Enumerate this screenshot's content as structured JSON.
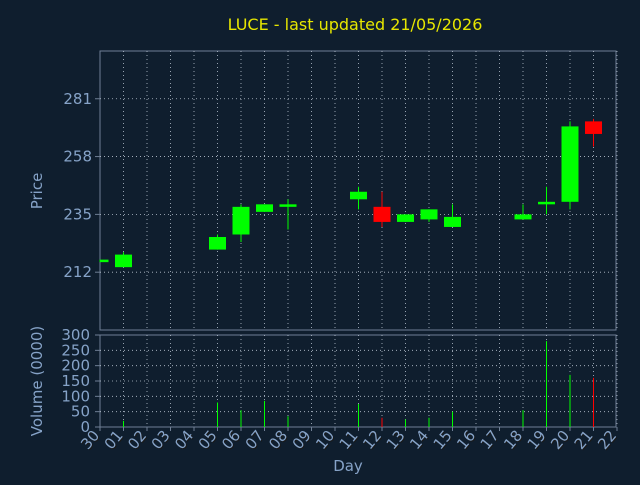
{
  "chart_data": [
    {
      "type": "candlestick",
      "title": "LUCE - last updated 21/05/2026",
      "ylabel": "Price",
      "ylim": [
        189,
        300
      ],
      "y_ticks": [
        212,
        235,
        258,
        281
      ],
      "grid": true,
      "x_categories": [
        "30",
        "01",
        "02",
        "03",
        "04",
        "05",
        "06",
        "07",
        "08",
        "09",
        "10",
        "11",
        "12",
        "13",
        "14",
        "15",
        "16",
        "17",
        "18",
        "19",
        "20",
        "21",
        "22"
      ],
      "candles": [
        {
          "day": "30",
          "open": 216,
          "close": 217,
          "high": 217,
          "low": 216,
          "dir": "up"
        },
        {
          "day": "01",
          "open": 214,
          "close": 219,
          "high": 220,
          "low": 214,
          "dir": "up"
        },
        {
          "day": "05",
          "open": 221,
          "close": 226,
          "high": 227,
          "low": 221,
          "dir": "up"
        },
        {
          "day": "06",
          "open": 227,
          "close": 238,
          "high": 239,
          "low": 224,
          "dir": "up"
        },
        {
          "day": "07",
          "open": 236,
          "close": 239,
          "high": 239,
          "low": 236,
          "dir": "up"
        },
        {
          "day": "08",
          "open": 238,
          "close": 239,
          "high": 241,
          "low": 229,
          "dir": "up"
        },
        {
          "day": "11",
          "open": 241,
          "close": 244,
          "high": 246,
          "low": 237,
          "dir": "up"
        },
        {
          "day": "12",
          "open": 238,
          "close": 232,
          "high": 244,
          "low": 230,
          "dir": "down"
        },
        {
          "day": "13",
          "open": 232,
          "close": 235,
          "high": 235,
          "low": 232,
          "dir": "up"
        },
        {
          "day": "14",
          "open": 233,
          "close": 237,
          "high": 237,
          "low": 232,
          "dir": "up"
        },
        {
          "day": "15",
          "open": 230,
          "close": 234,
          "high": 239,
          "low": 230,
          "dir": "up"
        },
        {
          "day": "18",
          "open": 233,
          "close": 235,
          "high": 239,
          "low": 233,
          "dir": "up"
        },
        {
          "day": "19",
          "open": 239,
          "close": 240,
          "high": 246,
          "low": 235,
          "dir": "up"
        },
        {
          "day": "20",
          "open": 240,
          "close": 270,
          "high": 272,
          "low": 237,
          "dir": "up"
        },
        {
          "day": "21",
          "open": 272,
          "close": 267,
          "high": 273,
          "low": 262,
          "dir": "down"
        }
      ]
    },
    {
      "type": "bar",
      "ylabel": "Volume (0000)",
      "xlabel": "Day",
      "ylim": [
        0,
        300
      ],
      "y_ticks": [
        0,
        50,
        100,
        150,
        200,
        250,
        300
      ],
      "grid": true,
      "x_categories": [
        "30",
        "01",
        "02",
        "03",
        "04",
        "05",
        "06",
        "07",
        "08",
        "09",
        "10",
        "11",
        "12",
        "13",
        "14",
        "15",
        "16",
        "17",
        "18",
        "19",
        "20",
        "21",
        "22"
      ],
      "values": [
        {
          "day": "30",
          "value": 0,
          "dir": "up"
        },
        {
          "day": "01",
          "value": 20,
          "dir": "up"
        },
        {
          "day": "05",
          "value": 80,
          "dir": "up"
        },
        {
          "day": "06",
          "value": 55,
          "dir": "up"
        },
        {
          "day": "07",
          "value": 85,
          "dir": "up"
        },
        {
          "day": "08",
          "value": 35,
          "dir": "up"
        },
        {
          "day": "11",
          "value": 75,
          "dir": "up"
        },
        {
          "day": "12",
          "value": 30,
          "dir": "down"
        },
        {
          "day": "13",
          "value": 25,
          "dir": "up"
        },
        {
          "day": "14",
          "value": 30,
          "dir": "up"
        },
        {
          "day": "15",
          "value": 50,
          "dir": "up"
        },
        {
          "day": "18",
          "value": 55,
          "dir": "up"
        },
        {
          "day": "19",
          "value": 280,
          "dir": "up"
        },
        {
          "day": "20",
          "value": 170,
          "dir": "up"
        },
        {
          "day": "21",
          "value": 160,
          "dir": "down"
        }
      ]
    }
  ],
  "colors": {
    "background": "#0f1e2e",
    "plot_border": "#6f7f95",
    "grid": "#b9c3d0",
    "title": "#e6e600",
    "axis_text": "#86a3c8",
    "day_label": "#1a1a1a",
    "up": "#00ff00",
    "down": "#ff0000"
  }
}
